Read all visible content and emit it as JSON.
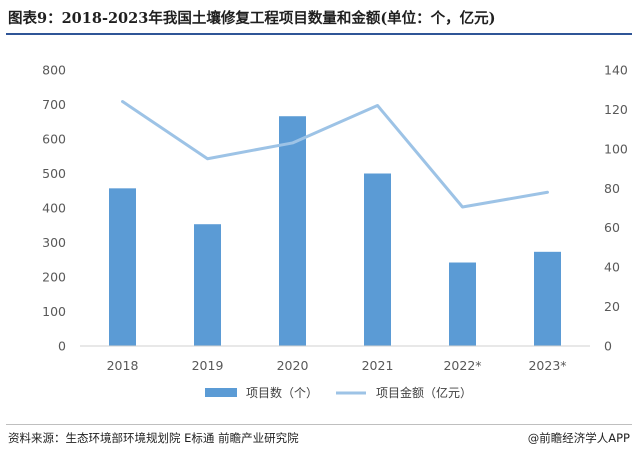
{
  "title": "图表9：2018-2023年我国土壤修复工程项目数量和金额(单位：个，亿元)",
  "source": "资料来源：生态环境部环境规划院 E标通 前瞻产业研究院",
  "brand": "@前瞻经济学人APP",
  "colors": {
    "bar": "#5b9bd5",
    "line": "#9dc3e6",
    "rule": "#2f5597"
  },
  "chart_data": {
    "type": "bar",
    "categories": [
      "2018",
      "2019",
      "2020",
      "2021",
      "2022*",
      "2023*"
    ],
    "series": [
      {
        "name": "项目数（个）",
        "type": "bar",
        "axis": "left",
        "values": [
          457,
          353,
          666,
          500,
          242,
          273
        ]
      },
      {
        "name": "项目金额（亿元）",
        "type": "line",
        "axis": "right",
        "values": [
          124,
          95,
          103,
          122,
          70.5,
          78
        ]
      }
    ],
    "ylim_left": [
      0,
      800
    ],
    "ylim_right": [
      0,
      140
    ],
    "yticks_left": [
      0,
      100,
      200,
      300,
      400,
      500,
      600,
      700,
      800
    ],
    "yticks_right": [
      0,
      20,
      40,
      60,
      80,
      100,
      120,
      140
    ],
    "grid": false,
    "legend": "bottom-center"
  }
}
